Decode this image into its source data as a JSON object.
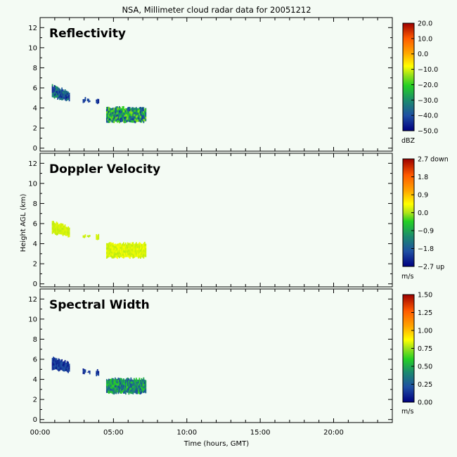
{
  "figure": {
    "title": "NSA, Millimeter cloud radar data for 20051212",
    "xlabel": "Time (hours, GMT)",
    "ylabel": "Height AGL (km)",
    "background": "#f4fbf4"
  },
  "chart_data": [
    {
      "type": "heatmap",
      "title": "Reflectivity",
      "x_ticks": [
        "00:00",
        "05:00",
        "10:00",
        "15:00",
        "20:00"
      ],
      "y_ticks": [
        "0",
        "2",
        "4",
        "6",
        "8",
        "10",
        "12"
      ],
      "xlim": [
        0,
        24
      ],
      "ylim": [
        -0.3,
        13
      ],
      "colorbar": {
        "unit": "dBZ",
        "ticks": [
          "20.0",
          "10.0",
          "0.0",
          "−10.0",
          "−20.0",
          "−30.0",
          "−40.0",
          "−50.0"
        ]
      },
      "echoes": [
        {
          "x": [
            0.8,
            2.0
          ],
          "y": [
            4.6,
            6.4
          ],
          "mean_value": -40,
          "value_range": [
            -47,
            -30
          ]
        },
        {
          "x": [
            2.9,
            3.1
          ],
          "y": [
            4.5,
            5.1
          ],
          "mean_value": -45,
          "value_range": [
            -47,
            -40
          ]
        },
        {
          "x": [
            3.2,
            3.4
          ],
          "y": [
            4.5,
            5.0
          ],
          "mean_value": -45,
          "value_range": [
            -47,
            -40
          ]
        },
        {
          "x": [
            3.8,
            4.0
          ],
          "y": [
            4.3,
            5.1
          ],
          "mean_value": -45,
          "value_range": [
            -47,
            -40
          ]
        },
        {
          "x": [
            4.5,
            7.2
          ],
          "y": [
            2.5,
            4.2
          ],
          "mean_value": -32,
          "value_range": [
            -45,
            -15
          ]
        }
      ]
    },
    {
      "type": "heatmap",
      "title": "Doppler Velocity",
      "x_ticks": [
        "00:00",
        "05:00",
        "10:00",
        "15:00",
        "20:00"
      ],
      "y_ticks": [
        "0",
        "2",
        "4",
        "6",
        "8",
        "10",
        "12"
      ],
      "xlim": [
        0,
        24
      ],
      "ylim": [
        -0.3,
        13
      ],
      "colorbar": {
        "unit": "m/s",
        "ticks": [
          "2.7 down",
          "1.8",
          "0.9",
          "0.0",
          "−0.9",
          "−1.8",
          "−2.7 up"
        ]
      },
      "echoes": [
        {
          "x": [
            0.8,
            2.0
          ],
          "y": [
            4.6,
            6.4
          ],
          "mean_value": 0.3,
          "value_range": [
            0.2,
            0.5
          ]
        },
        {
          "x": [
            2.9,
            3.1
          ],
          "y": [
            4.5,
            5.1
          ],
          "mean_value": 0.3,
          "value_range": [
            0.2,
            0.5
          ]
        },
        {
          "x": [
            3.2,
            3.4
          ],
          "y": [
            4.5,
            5.0
          ],
          "mean_value": 0.3,
          "value_range": [
            0.2,
            0.5
          ]
        },
        {
          "x": [
            3.8,
            4.0
          ],
          "y": [
            4.3,
            5.1
          ],
          "mean_value": 0.3,
          "value_range": [
            0.2,
            0.5
          ]
        },
        {
          "x": [
            4.5,
            7.2
          ],
          "y": [
            2.5,
            4.2
          ],
          "mean_value": 0.4,
          "value_range": [
            0.2,
            0.7
          ]
        }
      ]
    },
    {
      "type": "heatmap",
      "title": "Spectral Width",
      "x_ticks": [
        "00:00",
        "05:00",
        "10:00",
        "15:00",
        "20:00"
      ],
      "y_ticks": [
        "0",
        "2",
        "4",
        "6",
        "8",
        "10",
        "12"
      ],
      "xlim": [
        0,
        24
      ],
      "ylim": [
        -0.3,
        13
      ],
      "colorbar": {
        "unit": "m/s",
        "ticks": [
          "1.50",
          "1.25",
          "1.00",
          "0.75",
          "0.50",
          "0.25",
          "0.00"
        ]
      },
      "echoes": [
        {
          "x": [
            0.8,
            2.0
          ],
          "y": [
            4.6,
            6.4
          ],
          "mean_value": 0.12,
          "value_range": [
            0.05,
            0.2
          ]
        },
        {
          "x": [
            2.9,
            3.1
          ],
          "y": [
            4.5,
            5.1
          ],
          "mean_value": 0.12,
          "value_range": [
            0.05,
            0.2
          ]
        },
        {
          "x": [
            3.2,
            3.4
          ],
          "y": [
            4.5,
            5.0
          ],
          "mean_value": 0.12,
          "value_range": [
            0.05,
            0.2
          ]
        },
        {
          "x": [
            3.8,
            4.0
          ],
          "y": [
            4.3,
            5.1
          ],
          "mean_value": 0.12,
          "value_range": [
            0.05,
            0.2
          ]
        },
        {
          "x": [
            4.5,
            7.2
          ],
          "y": [
            2.5,
            4.2
          ],
          "mean_value": 0.35,
          "value_range": [
            0.15,
            0.6
          ]
        }
      ]
    }
  ]
}
